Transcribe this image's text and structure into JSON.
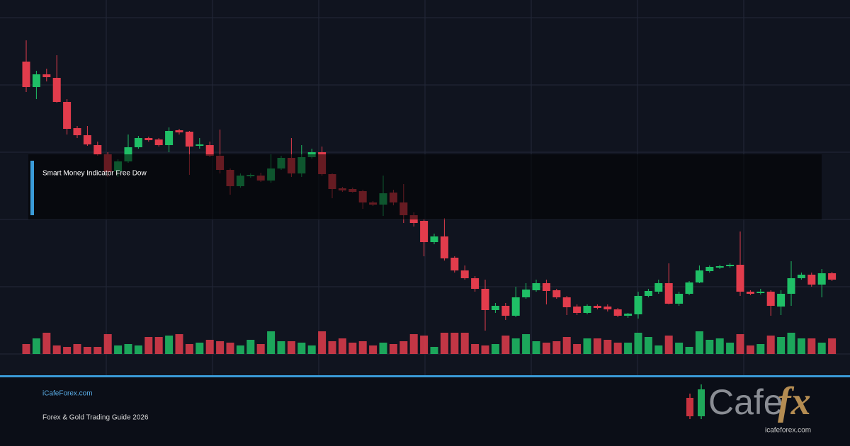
{
  "chart_data": {
    "type": "candlestick",
    "open": [
      413,
      377,
      395,
      390,
      356,
      319,
      309,
      295,
      282,
      258,
      272,
      292,
      305,
      303,
      295,
      316,
      314,
      294,
      295,
      280,
      260,
      237,
      251,
      252,
      245,
      262,
      277,
      255,
      278,
      285,
      254,
      234,
      233,
      230,
      214,
      211,
      228,
      214,
      196,
      188,
      158,
      166,
      136,
      118,
      107,
      92,
      62,
      68,
      54,
      80,
      90,
      100,
      90,
      80,
      67,
      58,
      68,
      67,
      63,
      54,
      56,
      82,
      88,
      100,
      71,
      85,
      101,
      117,
      122,
      124,
      126,
      88,
      86,
      88,
      67,
      85,
      107,
      112,
      98,
      114
    ],
    "high": [
      443,
      400,
      403,
      422,
      360,
      322,
      322,
      300,
      285,
      275,
      310,
      308,
      307,
      305,
      320,
      318,
      315,
      305,
      300,
      317,
      262,
      255,
      255,
      256,
      282,
      280,
      305,
      295,
      290,
      293,
      255,
      236,
      235,
      232,
      216,
      252,
      232,
      240,
      200,
      190,
      170,
      192,
      138,
      125,
      110,
      105,
      72,
      72,
      95,
      100,
      105,
      105,
      92,
      82,
      70,
      70,
      70,
      70,
      65,
      58,
      88,
      92,
      105,
      128,
      88,
      103,
      125,
      125,
      126,
      128,
      173,
      90,
      92,
      90,
      90,
      131,
      115,
      115,
      120,
      116
    ],
    "low": [
      370,
      360,
      385,
      355,
      310,
      305,
      294,
      280,
      250,
      250,
      270,
      290,
      300,
      293,
      285,
      310,
      253,
      290,
      278,
      255,
      225,
      235,
      249,
      243,
      242,
      260,
      250,
      250,
      276,
      252,
      220,
      229,
      228,
      205,
      209,
      195,
      210,
      185,
      180,
      138,
      155,
      132,
      115,
      105,
      88,
      33,
      58,
      48,
      52,
      78,
      88,
      70,
      78,
      55,
      55,
      56,
      63,
      60,
      52,
      51,
      50,
      80,
      85,
      70,
      68,
      83,
      100,
      115,
      120,
      122,
      82,
      83,
      84,
      54,
      55,
      68,
      105,
      95,
      80,
      103
    ],
    "close": [
      377,
      395,
      391,
      356,
      318,
      309,
      296,
      282,
      257,
      272,
      292,
      305,
      302,
      295,
      315,
      313,
      293,
      296,
      280,
      260,
      237,
      252,
      253,
      245,
      262,
      277,
      255,
      278,
      285,
      254,
      233,
      231,
      229,
      214,
      211,
      227,
      214,
      196,
      185,
      158,
      166,
      135,
      118,
      107,
      92,
      62,
      68,
      54,
      80,
      91,
      100,
      89,
      80,
      66,
      58,
      68,
      65,
      63,
      54,
      57,
      82,
      89,
      100,
      71,
      85,
      101,
      118,
      123,
      124,
      126,
      88,
      85,
      88,
      68,
      85,
      107,
      112,
      98,
      114,
      105
    ],
    "volume": [
      14,
      22,
      30,
      12,
      10,
      14,
      10,
      10,
      28,
      12,
      14,
      12,
      24,
      24,
      26,
      28,
      14,
      16,
      20,
      18,
      16,
      12,
      20,
      14,
      32,
      18,
      18,
      16,
      12,
      32,
      18,
      22,
      16,
      18,
      12,
      16,
      14,
      18,
      28,
      26,
      10,
      30,
      30,
      30,
      14,
      12,
      14,
      26,
      22,
      28,
      18,
      16,
      18,
      24,
      14,
      22,
      22,
      20,
      16,
      16,
      30,
      24,
      12,
      26,
      16,
      10,
      32,
      20,
      22,
      16,
      28,
      12,
      14,
      26,
      24,
      30,
      22,
      22,
      16,
      22
    ],
    "ylim": [
      0,
      475
    ],
    "up_color": "#1fbf66",
    "down_color": "#e23c4c"
  },
  "overlay": {
    "label": "Smart Money Indicator Free Dow"
  },
  "footer": {
    "site": "iCafeForex.com",
    "subtitle": "Forex & Gold Trading Guide 2026"
  },
  "logo": {
    "word": "Cafe",
    "accent": "fx",
    "url": "icafeforex.com"
  }
}
